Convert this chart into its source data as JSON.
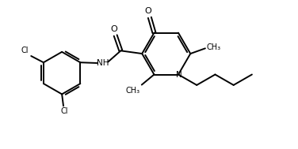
{
  "bg_color": "#ffffff",
  "line_color": "#000000",
  "line_width": 1.4,
  "fig_width": 3.76,
  "fig_height": 1.89,
  "dpi": 100,
  "xlim": [
    0,
    10
  ],
  "ylim": [
    0,
    5
  ]
}
